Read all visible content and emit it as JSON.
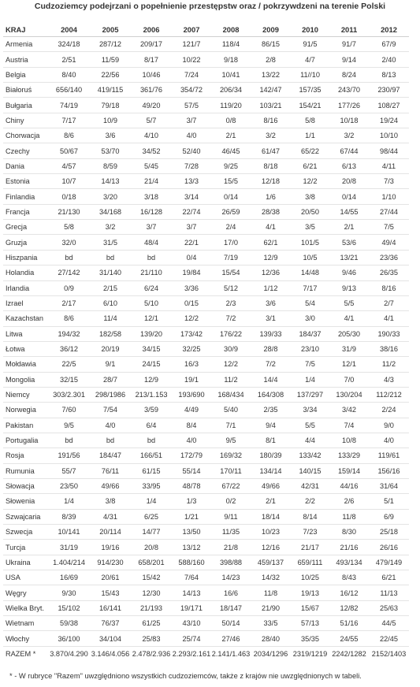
{
  "title": "Cudzoziemcy podejrzani o popełnienie przestępstw oraz / pokrzywdzeni na terenie Polski",
  "table": {
    "headers": [
      "KRAJ",
      "2004",
      "2005",
      "2006",
      "2007",
      "2008",
      "2009",
      "2010",
      "2011",
      "2012"
    ],
    "rows": [
      [
        "Armenia",
        "324/18",
        "287/12",
        "209/17",
        "121/7",
        "118/4",
        "86/15",
        "91/5",
        "91/7",
        "67/9"
      ],
      [
        "Austria",
        "2/51",
        "11/59",
        "8/17",
        "10/22",
        "9/18",
        "2/8",
        "4/7",
        "9/14",
        "2/40"
      ],
      [
        "Belgia",
        "8/40",
        "22/56",
        "10/46",
        "7/24",
        "10/41",
        "13/22",
        "11//10",
        "8/24",
        "8/13"
      ],
      [
        "Białoruś",
        "656/140",
        "419/115",
        "361/76",
        "354/72",
        "206/34",
        "142/47",
        "157/35",
        "243/70",
        "230/97"
      ],
      [
        "Bułgaria",
        "74/19",
        "79/18",
        "49/20",
        "57/5",
        "119/20",
        "103/21",
        "154/21",
        "177/26",
        "108/27"
      ],
      [
        "Chiny",
        "7/17",
        "10/9",
        "5/7",
        "3/7",
        "0/8",
        "8/16",
        "5/8",
        "10/18",
        "19/24"
      ],
      [
        "Chorwacja",
        "8/6",
        "3/6",
        "4/10",
        "4/0",
        "2/1",
        "3/2",
        "1/1",
        "3/2",
        "10/10"
      ],
      [
        "Czechy",
        "50/67",
        "53/70",
        "34/52",
        "52/40",
        "46/45",
        "61/47",
        "65/22",
        "67/44",
        "98/44"
      ],
      [
        "Dania",
        "4/57",
        "8/59",
        "5/45",
        "7/28",
        "9/25",
        "8/18",
        "6/21",
        "6/13",
        "4/11"
      ],
      [
        "Estonia",
        "10/7",
        "14/13",
        "21/4",
        "13/3",
        "15/5",
        "12/18",
        "12/2",
        "20/8",
        "7/3"
      ],
      [
        "Finlandia",
        "0/18",
        "3/20",
        "3/18",
        "3/14",
        "0/14",
        "1/6",
        "3/8",
        "0/14",
        "1/10"
      ],
      [
        "Francja",
        "21/130",
        "34/168",
        "16/128",
        "22/74",
        "26/59",
        "28/38",
        "20/50",
        "14/55",
        "27/44"
      ],
      [
        "Grecja",
        "5/8",
        "3/2",
        "3/7",
        "3/7",
        "2/4",
        "4/1",
        "3/5",
        "2/1",
        "7/5"
      ],
      [
        "Gruzja",
        "32/0",
        "31/5",
        "48/4",
        "22/1",
        "17/0",
        "62/1",
        "101/5",
        "53/6",
        "49/4"
      ],
      [
        "Hiszpania",
        "bd",
        "bd",
        "bd",
        "0/4",
        "7/19",
        "12/9",
        "10/5",
        "13/21",
        "23/36"
      ],
      [
        "Holandia",
        "27/142",
        "31/140",
        "21/110",
        "19/84",
        "15/54",
        "12/36",
        "14/48",
        "9/46",
        "26/35"
      ],
      [
        "Irlandia",
        "0/9",
        "2/15",
        "6/24",
        "3/36",
        "5/12",
        "1/12",
        "7/17",
        "9/13",
        "8/16"
      ],
      [
        "Izrael",
        "2/17",
        "6/10",
        "5/10",
        "0/15",
        "2/3",
        "3/6",
        "5/4",
        "5/5",
        "2/7"
      ],
      [
        "Kazachstan",
        "8/6",
        "11/4",
        "12/1",
        "12/2",
        "7/2",
        "3/1",
        "3/0",
        "4/1",
        "4/1"
      ],
      [
        "Litwa",
        "194/32",
        "182/58",
        "139/20",
        "173/42",
        "176/22",
        "139/33",
        "184/37",
        "205/30",
        "190/33"
      ],
      [
        "Łotwa",
        "36/12",
        "20/19",
        "34/15",
        "32/25",
        "30/9",
        "28/8",
        "23/10",
        "31/9",
        "38/16"
      ],
      [
        "Mołdawia",
        "22/5",
        "9/1",
        "24/15",
        "16/3",
        "12/2",
        "7/2",
        "7/5",
        "12/1",
        "11/2"
      ],
      [
        "Mongolia",
        "32/15",
        "28/7",
        "12/9",
        "19/1",
        "11/2",
        "14/4",
        "1/4",
        "7/0",
        "4/3"
      ],
      [
        "Niemcy",
        "303/2.301",
        "298/1986",
        "213/1.153",
        "193/690",
        "168/434",
        "164/308",
        "137/297",
        "130/204",
        "112/212"
      ],
      [
        "Norwegia",
        "7/60",
        "7/54",
        "3/59",
        "4/49",
        "5/40",
        "2/35",
        "3/34",
        "3/42",
        "2/24"
      ],
      [
        "Pakistan",
        "9/5",
        "4/0",
        "6/4",
        "8/4",
        "7/1",
        "9/4",
        "5/5",
        "7/4",
        "9/0"
      ],
      [
        "Portugalia",
        "bd",
        "bd",
        "bd",
        "4/0",
        "9/5",
        "8/1",
        "4/4",
        "10/8",
        "4/0"
      ],
      [
        "Rosja",
        "191/56",
        "184/47",
        "166/51",
        "172/79",
        "169/32",
        "180/39",
        "133/42",
        "133/29",
        "119/61"
      ],
      [
        "Rumunia",
        "55/7",
        "76/11",
        "61/15",
        "55/14",
        "170/11",
        "134/14",
        "140/15",
        "159/14",
        "156/16"
      ],
      [
        "Słowacja",
        "23/50",
        "49/66",
        "33/95",
        "48/78",
        "67/22",
        "49/66",
        "42/31",
        "44/16",
        "31/64"
      ],
      [
        "Słowenia",
        "1/4",
        "3/8",
        "1/4",
        "1/3",
        "0/2",
        "2/1",
        "2/2",
        "2/6",
        "5/1"
      ],
      [
        "Szwajcaria",
        "8/39",
        "4/31",
        "6/25",
        "1/21",
        "9/11",
        "18/14",
        "8/14",
        "11/8",
        "6/9"
      ],
      [
        "Szwecja",
        "10/141",
        "20/114",
        "14/77",
        "13/50",
        "11/35",
        "10/23",
        "7/23",
        "8/30",
        "25/18"
      ],
      [
        "Turcja",
        "31/19",
        "19/16",
        "20/8",
        "13/12",
        "21/8",
        "12/16",
        "21/17",
        "21/16",
        "26/16"
      ],
      [
        "Ukraina",
        "1.404/214",
        "914/230",
        "658/201",
        "588/160",
        "398/88",
        "459/137",
        "659/111",
        "493/134",
        "479/149"
      ],
      [
        "USA",
        "16/69",
        "20/61",
        "15/42",
        "7/64",
        "14/23",
        "14/32",
        "10/25",
        "8/43",
        "6/21"
      ],
      [
        "Węgry",
        "9/30",
        "15/43",
        "12/30",
        "14/13",
        "16/6",
        "11/8",
        "19/13",
        "16/12",
        "11/13"
      ],
      [
        "Wielka Bryt.",
        "15/102",
        "16/141",
        "21/193",
        "19/171",
        "18/147",
        "21/90",
        "15/67",
        "12/82",
        "25/63"
      ],
      [
        "Wietnam",
        "59/38",
        "76/37",
        "61/25",
        "43/10",
        "50/14",
        "33/5",
        "57/13",
        "51/16",
        "44/5"
      ],
      [
        "Włochy",
        "36/100",
        "34/104",
        "25/83",
        "25/74",
        "27/46",
        "28/40",
        "35/35",
        "24/55",
        "22/45"
      ],
      [
        "RAZEM *",
        "3.870/4.290",
        "3.146/4.056",
        "2.478/2.936",
        "2.293/2.161",
        "2.141/1.463",
        "2034/1296",
        "2319/1219",
        "2242/1282",
        "2152/1403"
      ]
    ]
  },
  "footnote": "* - W rubryce \"Razem\" uwzględniono wszystkich cudzoziemców, także z krajów nie uwzględnionych w tabeli."
}
